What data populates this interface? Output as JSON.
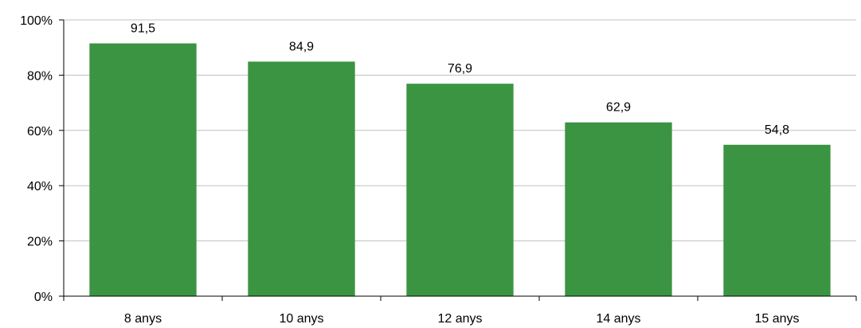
{
  "chart_data": {
    "type": "bar",
    "categories": [
      "8 anys",
      "10 anys",
      "12 anys",
      "14 anys",
      "15 anys"
    ],
    "values": [
      91.5,
      84.9,
      76.9,
      62.9,
      54.8
    ],
    "data_labels": [
      "91,5",
      "84,9",
      "76,9",
      "62,9",
      "54,8"
    ],
    "ylim": [
      0,
      100
    ],
    "yticks": [
      0,
      20,
      40,
      60,
      80,
      100
    ],
    "ytick_labels": [
      "0%",
      "20%",
      "40%",
      "60%",
      "80%",
      "100%"
    ],
    "grid": true,
    "legend": "none",
    "title": "",
    "xlabel": "",
    "ylabel": "",
    "colors": {
      "bar": "#3a9441",
      "grid": "#c0c0c0",
      "axis": "#000000"
    }
  }
}
